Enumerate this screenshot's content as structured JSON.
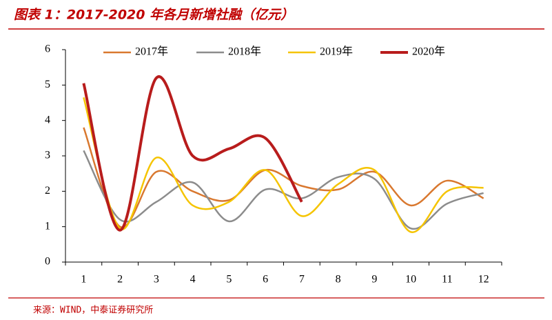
{
  "chart_data": {
    "type": "line",
    "title": "图表 1：2017-2020 年各月新增社融（亿元）",
    "source": "来源：WIND，中泰证券研究所",
    "categories": [
      "1",
      "2",
      "3",
      "4",
      "5",
      "6",
      "7",
      "8",
      "9",
      "10",
      "11",
      "12"
    ],
    "series": [
      {
        "name": "2017年",
        "color": "#d9782f",
        "values": [
          3.8,
          1.0,
          2.55,
          2.0,
          1.75,
          2.6,
          2.15,
          2.05,
          2.55,
          1.6,
          2.3,
          1.8
        ]
      },
      {
        "name": "2018年",
        "color": "#8c8c8c",
        "values": [
          3.15,
          1.2,
          1.7,
          2.25,
          1.15,
          2.05,
          1.8,
          2.4,
          2.35,
          0.95,
          1.65,
          1.95
        ]
      },
      {
        "name": "2019年",
        "color": "#f5c400",
        "values": [
          4.65,
          0.95,
          2.95,
          1.6,
          1.7,
          2.6,
          1.3,
          2.2,
          2.6,
          0.85,
          2.0,
          2.1
        ]
      },
      {
        "name": "2020年",
        "color": "#b81c1c",
        "values": [
          5.05,
          0.9,
          5.2,
          3.0,
          3.2,
          3.5,
          1.7,
          null,
          null,
          null,
          null,
          null
        ]
      }
    ],
    "ylim": [
      0,
      6
    ],
    "yticks": [
      0,
      1,
      2,
      3,
      4,
      5,
      6
    ]
  }
}
